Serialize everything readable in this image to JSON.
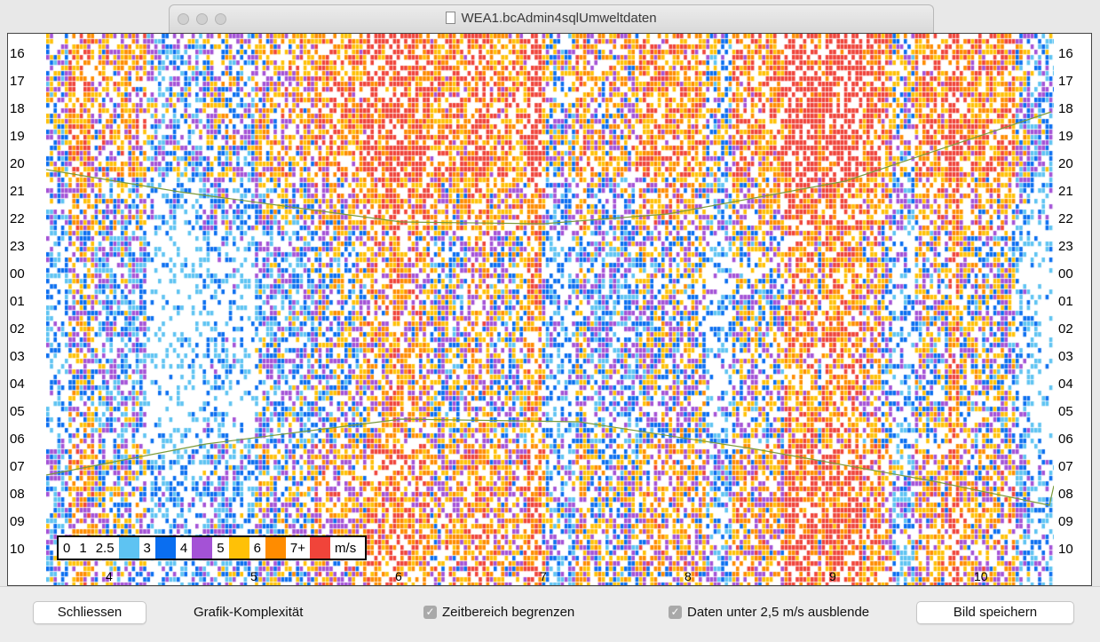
{
  "window": {
    "title": "WEA1.bcAdmin4sqlUmweltdaten"
  },
  "chart_data": {
    "type": "heatmap",
    "y_labels_left": [
      "16",
      "17",
      "18",
      "19",
      "20",
      "21",
      "22",
      "23",
      "00",
      "01",
      "02",
      "03",
      "04",
      "05",
      "06",
      "07",
      "08",
      "09",
      "10"
    ],
    "y_labels_right": [
      "16",
      "17",
      "18",
      "19",
      "20",
      "21",
      "22",
      "23",
      "00",
      "01",
      "02",
      "03",
      "04",
      "05",
      "06",
      "07",
      "08",
      "09",
      "10"
    ],
    "x_labels": [
      "4",
      "5",
      "6",
      "7",
      "8",
      "9",
      "10"
    ],
    "legend": {
      "unit": "m/s",
      "thresholds": [
        "0",
        "1",
        "2.5",
        "3",
        "4",
        "5",
        "6",
        "7+"
      ],
      "colors": [
        "#ffffff",
        "#ffffff",
        "#ffffff",
        "#5ec3f2",
        "#0a6ef0",
        "#a452d6",
        "#ffc107",
        "#ff8c00",
        "#f0443a"
      ]
    },
    "line_color": "#7a9a3a"
  },
  "footer": {
    "close_label": "Schliessen",
    "complexity_label": "Grafik-Komplexität",
    "limit_time_label": "Zeitbereich begrenzen",
    "hide_low_label": "Daten unter 2,5 m/s ausblende",
    "save_label": "Bild speichern"
  }
}
